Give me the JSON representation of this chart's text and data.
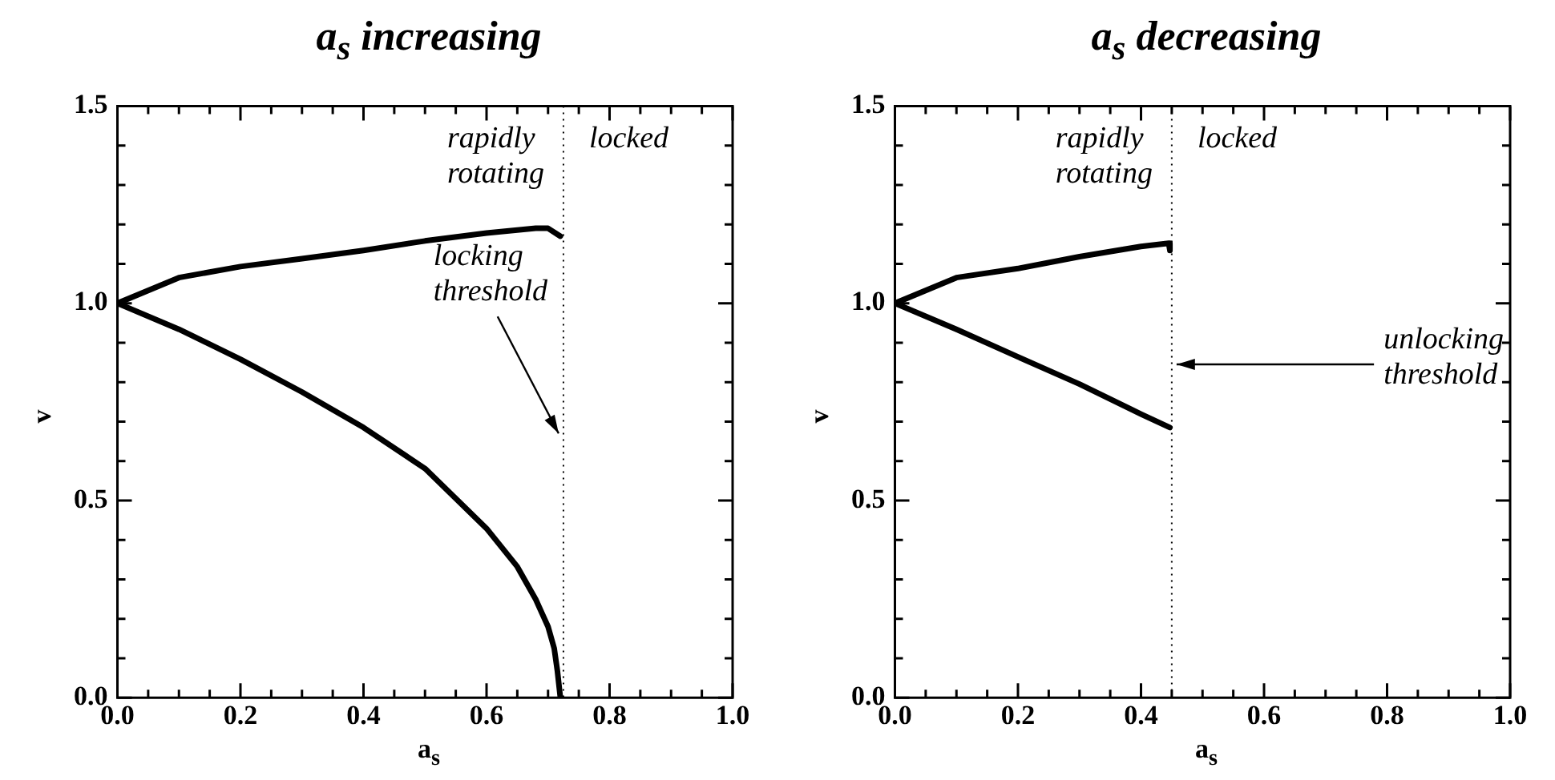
{
  "chart_data": [
    {
      "type": "line",
      "title": "a$_{s}$ increasing",
      "xlabel": "a$_{s}$",
      "ylabel": "v",
      "marker": "none",
      "line_style": "solid",
      "grid": false,
      "legend": false,
      "xlim": [
        0,
        1
      ],
      "ylim": [
        0,
        1.5
      ],
      "xticks": [
        {
          "value": 0,
          "label": "0.0"
        },
        {
          "value": 0.05,
          "label": null
        },
        {
          "value": 0.1,
          "label": null
        },
        {
          "value": 0.15,
          "label": null
        },
        {
          "value": 0.2,
          "label": "0.2"
        },
        {
          "value": 0.25,
          "label": null
        },
        {
          "value": 0.3,
          "label": null
        },
        {
          "value": 0.35,
          "label": null
        },
        {
          "value": 0.4,
          "label": "0.4"
        },
        {
          "value": 0.45,
          "label": null
        },
        {
          "value": 0.5,
          "label": null
        },
        {
          "value": 0.55,
          "label": null
        },
        {
          "value": 0.6,
          "label": "0.6"
        },
        {
          "value": 0.65,
          "label": null
        },
        {
          "value": 0.7,
          "label": null
        },
        {
          "value": 0.75,
          "label": null
        },
        {
          "value": 0.8,
          "label": "0.8"
        },
        {
          "value": 0.85,
          "label": null
        },
        {
          "value": 0.9,
          "label": null
        },
        {
          "value": 0.95,
          "label": null
        },
        {
          "value": 1,
          "label": "1.0"
        }
      ],
      "yticks": [
        {
          "value": 0,
          "label": "0.0"
        },
        {
          "value": 0.1,
          "label": null
        },
        {
          "value": 0.2,
          "label": null
        },
        {
          "value": 0.3,
          "label": null
        },
        {
          "value": 0.4,
          "label": null
        },
        {
          "value": 0.5,
          "label": "0.5"
        },
        {
          "value": 0.6,
          "label": null
        },
        {
          "value": 0.7,
          "label": null
        },
        {
          "value": 0.8,
          "label": null
        },
        {
          "value": 0.9,
          "label": null
        },
        {
          "value": 1,
          "label": "1.0"
        },
        {
          "value": 1.1,
          "label": null
        },
        {
          "value": 1.2,
          "label": null
        },
        {
          "value": 1.3,
          "label": null
        },
        {
          "value": 1.4,
          "label": null
        },
        {
          "value": 1.5,
          "label": "1.5"
        }
      ],
      "series": [
        {
          "color": "#000000",
          "x": [
            0,
            0.1,
            0.2,
            0.3,
            0.4,
            0.5,
            0.6,
            0.68,
            0.7,
            0.72
          ],
          "values": [
            1.0,
            1.065,
            1.093,
            1.113,
            1.134,
            1.158,
            1.178,
            1.19,
            1.19,
            1.17
          ]
        },
        {
          "color": "#000000",
          "x": [
            0,
            0.1,
            0.2,
            0.3,
            0.4,
            0.5,
            0.6,
            0.65,
            0.68,
            0.7,
            0.71,
            0.715,
            0.72
          ],
          "values": [
            1.0,
            0.934,
            0.858,
            0.775,
            0.685,
            0.581,
            0.429,
            0.332,
            0.249,
            0.18,
            0.125,
            0.07,
            0
          ]
        }
      ],
      "ref_lines": [
        {
          "axis": "x",
          "value": 0.725,
          "line_style": "dotted"
        }
      ],
      "annotations": [
        "rapidly\nrotating",
        "locked",
        {
          "text": "locking\nthreshold",
          "x": 0.725,
          "y": 0.67
        }
      ]
    },
    {
      "type": "line",
      "title": "a$_{s}$ decreasing",
      "xlabel": "a$_{s}$",
      "ylabel": "v",
      "marker": "none",
      "line_style": "solid",
      "grid": false,
      "legend": false,
      "xlim": [
        0,
        1
      ],
      "ylim": [
        0,
        1.5
      ],
      "xticks": [
        {
          "value": 0,
          "label": "0.0"
        },
        {
          "value": 0.05,
          "label": null
        },
        {
          "value": 0.1,
          "label": null
        },
        {
          "value": 0.15,
          "label": null
        },
        {
          "value": 0.2,
          "label": "0.2"
        },
        {
          "value": 0.25,
          "label": null
        },
        {
          "value": 0.3,
          "label": null
        },
        {
          "value": 0.35,
          "label": null
        },
        {
          "value": 0.4,
          "label": "0.4"
        },
        {
          "value": 0.45,
          "label": null
        },
        {
          "value": 0.5,
          "label": null
        },
        {
          "value": 0.55,
          "label": null
        },
        {
          "value": 0.6,
          "label": "0.6"
        },
        {
          "value": 0.65,
          "label": null
        },
        {
          "value": 0.7,
          "label": null
        },
        {
          "value": 0.75,
          "label": null
        },
        {
          "value": 0.8,
          "label": "0.8"
        },
        {
          "value": 0.85,
          "label": null
        },
        {
          "value": 0.9,
          "label": null
        },
        {
          "value": 0.95,
          "label": null
        },
        {
          "value": 1,
          "label": "1.0"
        }
      ],
      "yticks": [
        {
          "value": 0,
          "label": "0.0"
        },
        {
          "value": 0.1,
          "label": null
        },
        {
          "value": 0.2,
          "label": null
        },
        {
          "value": 0.3,
          "label": null
        },
        {
          "value": 0.4,
          "label": null
        },
        {
          "value": 0.5,
          "label": "0.5"
        },
        {
          "value": 0.6,
          "label": null
        },
        {
          "value": 0.7,
          "label": null
        },
        {
          "value": 0.8,
          "label": null
        },
        {
          "value": 0.9,
          "label": null
        },
        {
          "value": 1,
          "label": "1.0"
        },
        {
          "value": 1.1,
          "label": null
        },
        {
          "value": 1.2,
          "label": null
        },
        {
          "value": 1.3,
          "label": null
        },
        {
          "value": 1.4,
          "label": null
        },
        {
          "value": 1.5,
          "label": "1.5"
        }
      ],
      "series": [
        {
          "color": "#000000",
          "x": [
            0,
            0.1,
            0.2,
            0.3,
            0.4,
            0.445,
            0.447
          ],
          "values": [
            1.0,
            1.065,
            1.088,
            1.118,
            1.144,
            1.152,
            1.134
          ]
        },
        {
          "color": "#000000",
          "x": [
            0,
            0.1,
            0.2,
            0.3,
            0.4,
            0.447
          ],
          "values": [
            1.0,
            0.934,
            0.864,
            0.795,
            0.719,
            0.685
          ]
        }
      ],
      "ref_lines": [
        {
          "axis": "x",
          "value": 0.45,
          "line_style": "dotted"
        }
      ],
      "annotations": [
        "rapidly\nrotating",
        "locked",
        {
          "text": "unlocking\nthreshold",
          "x": 0.45,
          "y": 0.845
        }
      ]
    }
  ]
}
